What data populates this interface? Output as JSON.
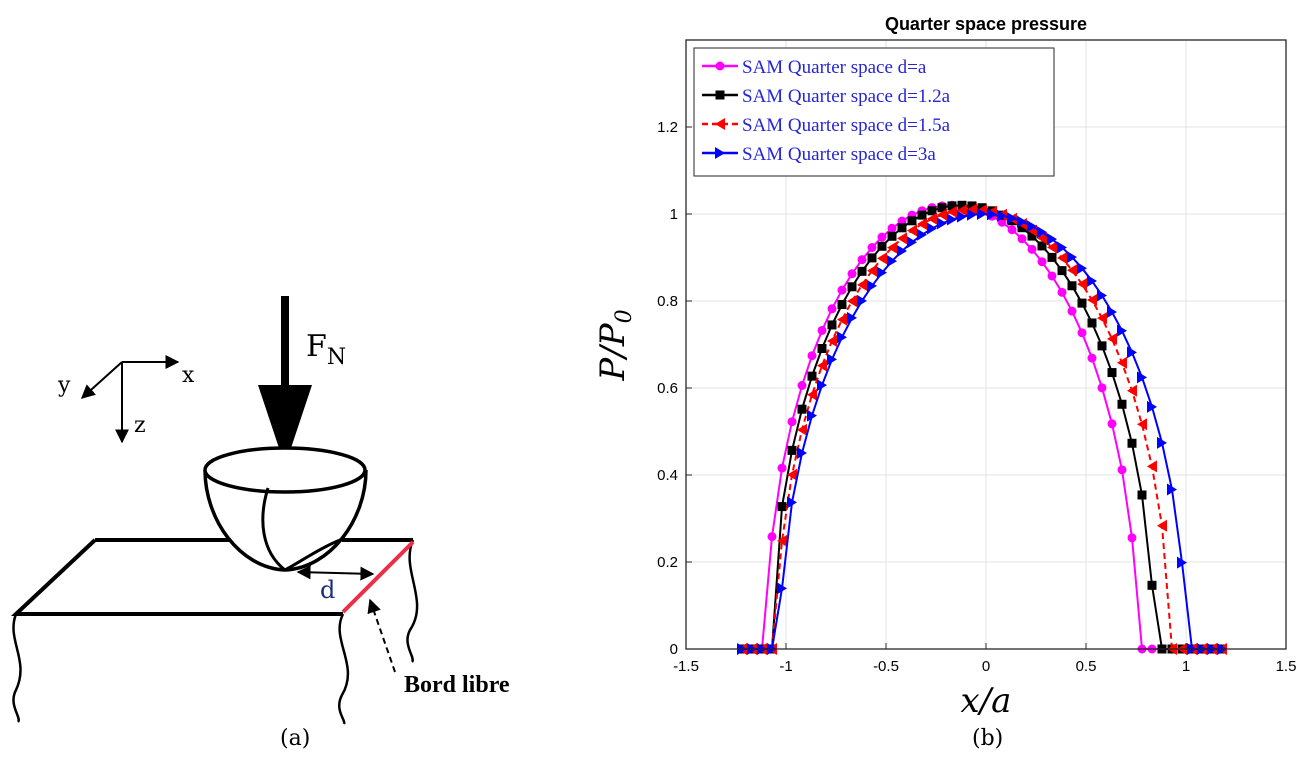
{
  "panel_a": {
    "caption": "(a)",
    "force_label_main": "F",
    "force_label_sub": "N",
    "axis_x": "x",
    "axis_y": "y",
    "axis_z": "z",
    "distance_label": "d",
    "edge_label": "Bord libre",
    "colors": {
      "free_edge": "#e8304a",
      "distance_text": "#1c2e7a"
    }
  },
  "panel_b": {
    "caption": "(b)"
  },
  "chart_data": {
    "type": "line",
    "title": "Quarter space pressure",
    "xlabel": "x/a",
    "ylabel": "P/P",
    "ylabel_sub": "0",
    "xlim": [
      -1.5,
      1.5
    ],
    "ylim": [
      0,
      1.4
    ],
    "xticks": [
      -1.5,
      -1,
      -0.5,
      0,
      0.5,
      1,
      1.5
    ],
    "xtick_labels": [
      "-1.5",
      "-1",
      "-0.5",
      "0",
      "0.5",
      "1",
      "1.5"
    ],
    "yticks": [
      0,
      0.2,
      0.4,
      0.6,
      0.8,
      1,
      1.2
    ],
    "ytick_labels": [
      "0",
      "0.2",
      "0.4",
      "0.6",
      "0.8",
      "1",
      "1.2"
    ],
    "grid": true,
    "legend_position": "top-left",
    "series": [
      {
        "name": "SAM Quarter space d=a",
        "color": "#ff00ff",
        "marker": "circle",
        "dash": false,
        "left": -1.1,
        "right": 0.76,
        "peak": 1.02,
        "peak_x": -0.11,
        "range": [
          -1.22,
          1.22
        ]
      },
      {
        "name": "SAM Quarter space d=1.2a",
        "color": "#000000",
        "marker": "square",
        "dash": false,
        "left": -1.07,
        "right": 0.84,
        "peak": 1.02,
        "peak_x": -0.09,
        "range": [
          -1.22,
          1.22
        ]
      },
      {
        "name": "SAM Quarter space d=1.5a",
        "color": "#ff0000",
        "marker": "triangle-left",
        "dash": true,
        "left": -1.05,
        "right": 0.92,
        "peak": 1.01,
        "peak_x": -0.06,
        "range": [
          -1.22,
          1.22
        ]
      },
      {
        "name": "SAM Quarter space d=3a",
        "color": "#0000ff",
        "marker": "triangle-right",
        "dash": false,
        "left": -1.03,
        "right": 1.0,
        "peak": 1.0,
        "peak_x": -0.02,
        "range": [
          -1.22,
          1.22
        ]
      }
    ]
  }
}
